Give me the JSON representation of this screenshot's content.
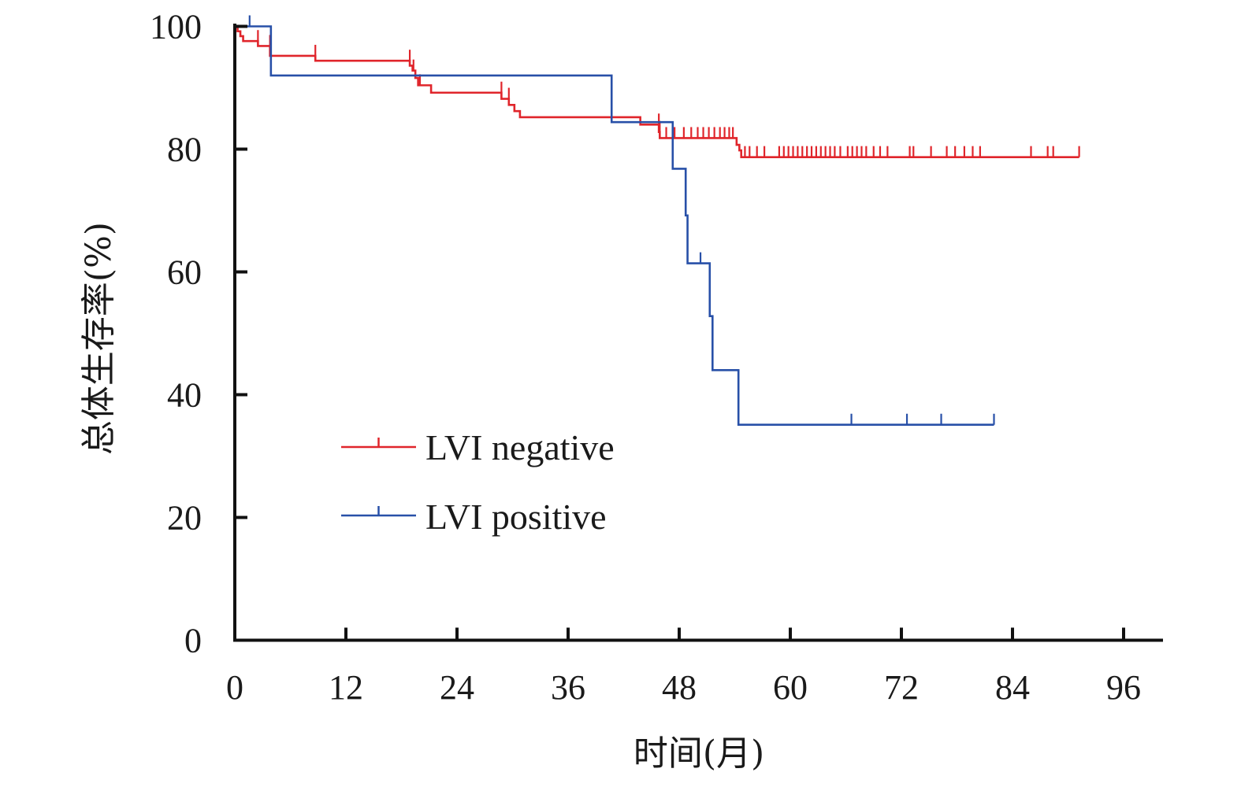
{
  "chart_data": {
    "type": "line",
    "subtype": "kaplan-meier",
    "title": "",
    "xlabel": "时间(月)",
    "ylabel": "总体生存率(%)",
    "xlim": [
      0,
      100
    ],
    "ylim": [
      0,
      100
    ],
    "xticks": [
      0,
      12,
      24,
      36,
      48,
      60,
      72,
      84,
      96
    ],
    "yticks": [
      0,
      20,
      40,
      60,
      80,
      100
    ],
    "grid": false,
    "legend_position": "center-left",
    "series": [
      {
        "name": "LVI negative",
        "color": "#e0252b",
        "steps": [
          [
            0,
            100
          ],
          [
            0.3,
            99.2
          ],
          [
            0.6,
            98.4
          ],
          [
            0.9,
            97.6
          ],
          [
            2.5,
            96.8
          ],
          [
            3.8,
            95.2
          ],
          [
            8.7,
            94.4
          ],
          [
            18.9,
            93.6
          ],
          [
            19.2,
            92.8
          ],
          [
            19.5,
            91.6
          ],
          [
            19.8,
            90.4
          ],
          [
            21.2,
            89.2
          ],
          [
            28.8,
            88.2
          ],
          [
            29.6,
            87.2
          ],
          [
            30.2,
            86.2
          ],
          [
            30.8,
            85.2
          ],
          [
            43.8,
            84.0
          ],
          [
            45.8,
            82.8
          ],
          [
            45.9,
            81.8
          ],
          [
            54.2,
            80.7
          ],
          [
            54.5,
            79.8
          ],
          [
            54.7,
            78.7
          ]
        ],
        "end": 91.2,
        "censored": [
          [
            2.5,
            97.6
          ],
          [
            3.8,
            96.8
          ],
          [
            8.7,
            95.2
          ],
          [
            18.9,
            94.4
          ],
          [
            19.3,
            92.8
          ],
          [
            20.0,
            90.4
          ],
          [
            28.8,
            89.2
          ],
          [
            29.6,
            88.2
          ],
          [
            45.8,
            84.0
          ],
          [
            45.9,
            82.8
          ],
          [
            46.6,
            81.8
          ],
          [
            47.5,
            81.8
          ],
          [
            48.5,
            81.8
          ],
          [
            49.3,
            81.8
          ],
          [
            50.0,
            81.8
          ],
          [
            50.6,
            81.8
          ],
          [
            51.2,
            81.8
          ],
          [
            51.8,
            81.8
          ],
          [
            52.4,
            81.8
          ],
          [
            52.9,
            81.8
          ],
          [
            53.4,
            81.8
          ],
          [
            53.8,
            81.8
          ],
          [
            55.1,
            78.7
          ],
          [
            55.6,
            78.7
          ],
          [
            56.4,
            78.7
          ],
          [
            57.2,
            78.7
          ],
          [
            58.8,
            78.7
          ],
          [
            59.3,
            78.7
          ],
          [
            59.8,
            78.7
          ],
          [
            60.3,
            78.7
          ],
          [
            60.8,
            78.7
          ],
          [
            61.3,
            78.7
          ],
          [
            61.8,
            78.7
          ],
          [
            62.3,
            78.7
          ],
          [
            62.8,
            78.7
          ],
          [
            63.3,
            78.7
          ],
          [
            63.8,
            78.7
          ],
          [
            64.3,
            78.7
          ],
          [
            64.8,
            78.7
          ],
          [
            65.4,
            78.7
          ],
          [
            66.2,
            78.7
          ],
          [
            66.7,
            78.7
          ],
          [
            67.2,
            78.7
          ],
          [
            67.7,
            78.7
          ],
          [
            68.2,
            78.7
          ],
          [
            69.0,
            78.7
          ],
          [
            69.7,
            78.7
          ],
          [
            70.5,
            78.7
          ],
          [
            72.9,
            78.7
          ],
          [
            73.3,
            78.7
          ],
          [
            75.2,
            78.7
          ],
          [
            76.9,
            78.7
          ],
          [
            77.8,
            78.7
          ],
          [
            78.8,
            78.7
          ],
          [
            79.7,
            78.7
          ],
          [
            80.5,
            78.7
          ],
          [
            86.0,
            78.7
          ],
          [
            87.8,
            78.7
          ],
          [
            88.4,
            78.7
          ],
          [
            91.2,
            78.7
          ]
        ]
      },
      {
        "name": "LVI positive",
        "color": "#2850a8",
        "steps": [
          [
            0,
            100
          ],
          [
            3.9,
            92.0
          ],
          [
            40.7,
            84.4
          ],
          [
            47.3,
            76.8
          ],
          [
            48.7,
            69.2
          ],
          [
            48.9,
            61.4
          ],
          [
            51.3,
            52.8
          ],
          [
            51.6,
            44.0
          ],
          [
            54.4,
            35.1
          ]
        ],
        "end": 82.0,
        "censored": [
          [
            1.6,
            100
          ],
          [
            50.3,
            61.4
          ],
          [
            66.6,
            35.1
          ],
          [
            72.6,
            35.1
          ],
          [
            76.3,
            35.1
          ],
          [
            82.0,
            35.1
          ]
        ]
      }
    ]
  }
}
